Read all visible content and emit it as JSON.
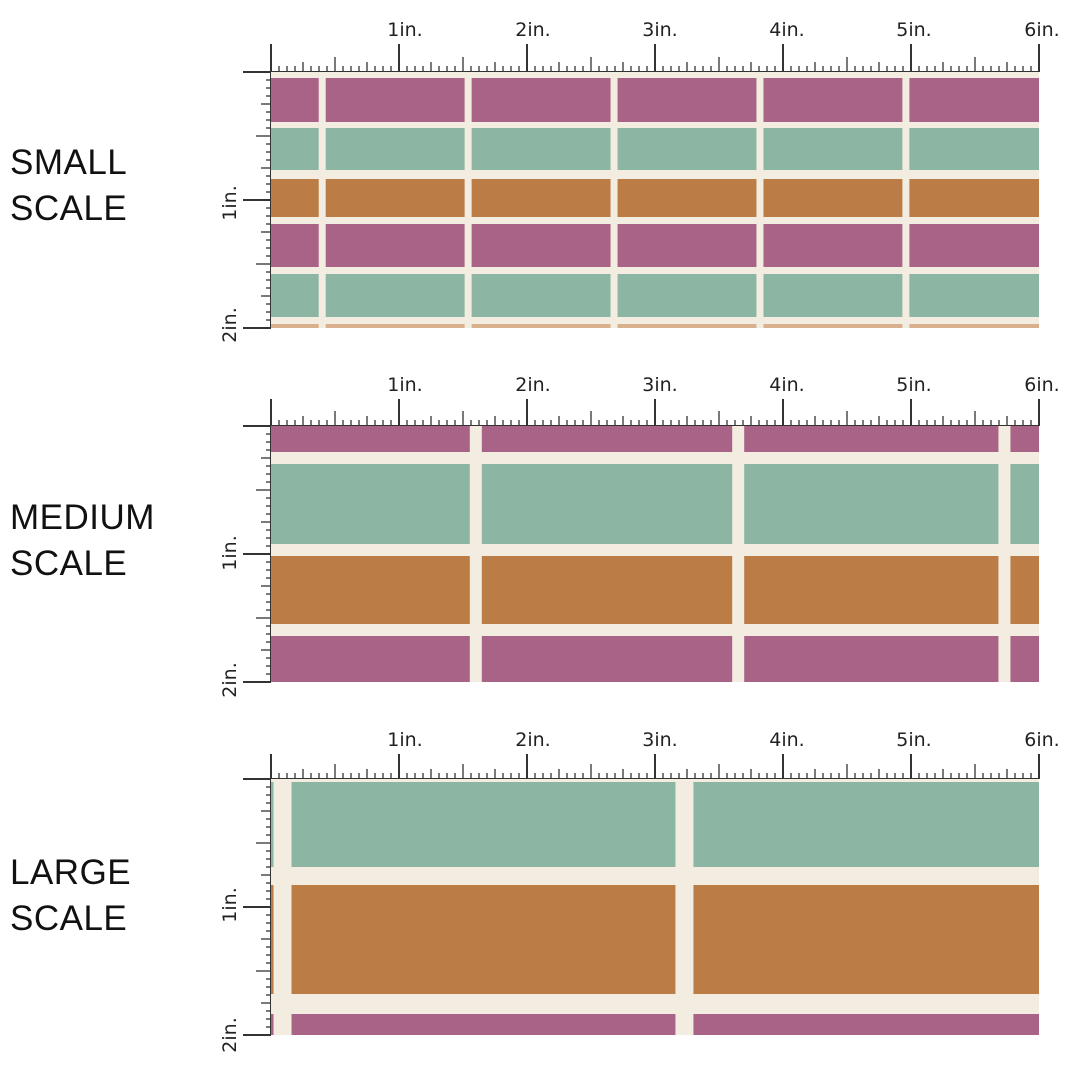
{
  "colors": {
    "cream": "#f3ede1",
    "plum": "#a96387",
    "sage": "#8cb6a3",
    "copper": "#bb7c46",
    "peach": "#d9b08d",
    "ruler": "#333333"
  },
  "ruler": {
    "x_labels": [
      "1in.",
      "2in.",
      "3in.",
      "4in.",
      "5in.",
      "6in."
    ],
    "y_labels": [
      "1in.",
      "2in."
    ]
  },
  "panels": [
    {
      "id": "small",
      "label_line1": "SMALL",
      "label_line2": "SCALE",
      "stripe_rows": [
        "plum",
        "sage",
        "copper",
        "plum",
        "sage",
        "peach"
      ],
      "seam_positions_in": [
        0.4,
        1.54,
        2.68,
        3.82,
        4.96
      ]
    },
    {
      "id": "medium",
      "label_line1": "MEDIUM",
      "label_line2": "SCALE",
      "stripe_rows": [
        "plum",
        "sage",
        "copper",
        "plum"
      ],
      "seam_positions_in": [
        1.6,
        3.65,
        5.73
      ]
    },
    {
      "id": "large",
      "label_line1": "LARGE",
      "label_line2": "SCALE",
      "stripe_rows": [
        "sage",
        "copper",
        "plum"
      ],
      "seam_positions_in": [
        0.09,
        3.23
      ]
    }
  ]
}
